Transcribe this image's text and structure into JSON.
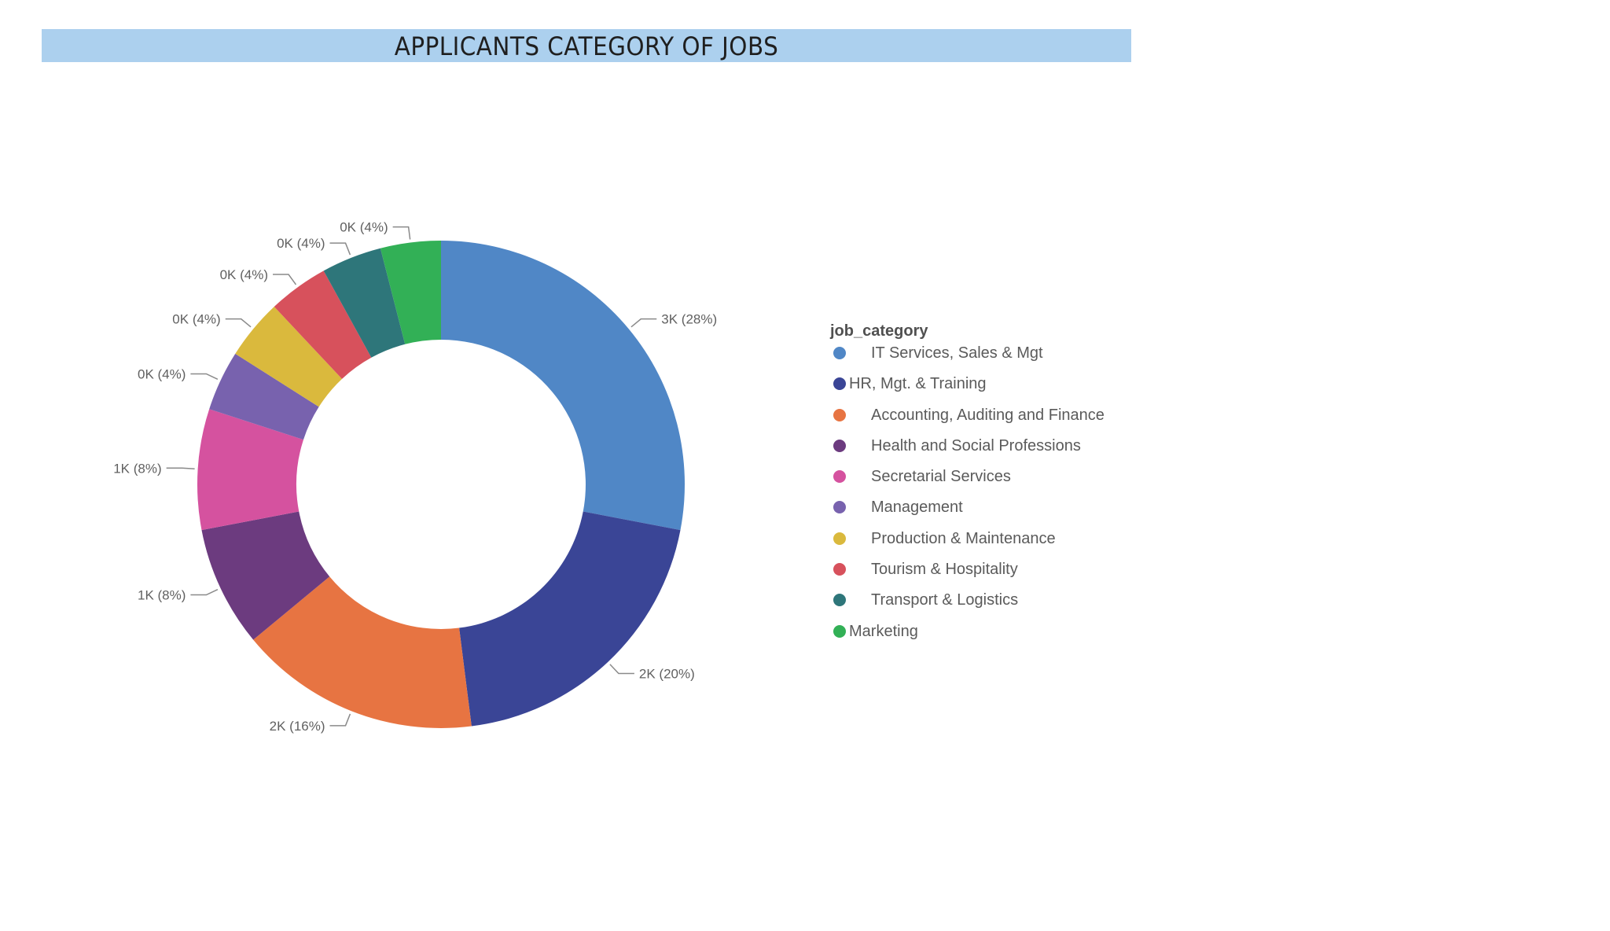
{
  "title": "APPLICANTS CATEGORY OF JOBS",
  "chart_data": {
    "type": "pie",
    "variant": "donut",
    "title": "APPLICANTS CATEGORY OF JOBS",
    "legend_title": "job_category",
    "legend_position": "right",
    "categories": [
      "IT Services, Sales & Mgt",
      "HR, Mgt. & Training",
      "Accounting, Auditing and Finance",
      "Health and Social Professions",
      "Secretarial Services",
      "Management",
      "Production & Maintenance",
      "Tourism & Hospitality",
      "Transport & Logistics",
      "Marketing"
    ],
    "values": [
      28,
      20,
      16,
      8,
      8,
      4,
      4,
      4,
      4,
      4
    ],
    "data_labels": [
      "3K (28%)",
      "2K (20%)",
      "2K (16%)",
      "1K (8%)",
      "1K (8%)",
      "0K (4%)",
      "0K (4%)",
      "0K (4%)",
      "0K (4%)",
      "0K (4%)"
    ],
    "colors": [
      "#5087c6",
      "#3a4596",
      "#e77442",
      "#6c3b7f",
      "#d5529f",
      "#7862ae",
      "#dab93d",
      "#d7515c",
      "#2e767a",
      "#32b056"
    ]
  }
}
